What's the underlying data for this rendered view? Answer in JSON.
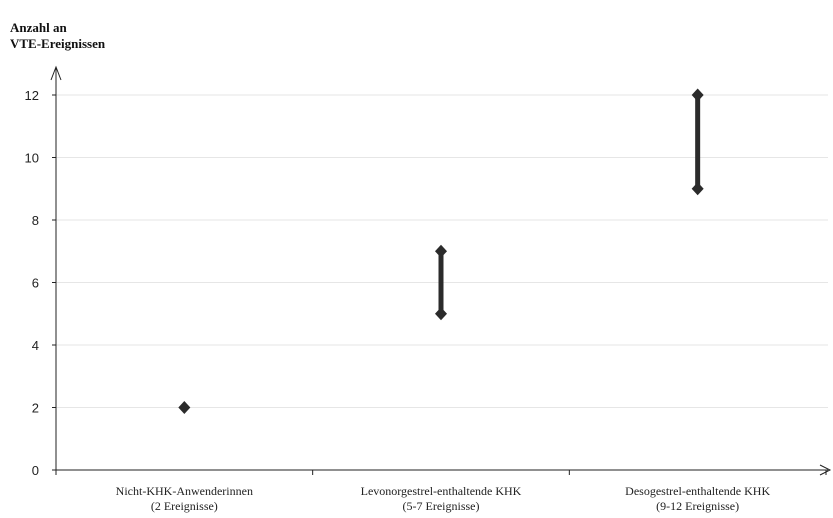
{
  "chart_data": {
    "type": "range",
    "ylabel_lines": [
      "Anzahl an",
      "VTE-Ereignissen"
    ],
    "ylim": [
      0,
      12
    ],
    "yticks": [
      "0",
      "2",
      "4",
      "6",
      "8",
      "10",
      "12"
    ],
    "grid": true,
    "categories": [
      {
        "name": "Nicht-KHK-Anwenderinnen",
        "note": "(2 Ereignisse)",
        "low": 2,
        "high": 2
      },
      {
        "name": "Levonorgestrel-enthaltende KHK",
        "note": "(5-7 Ereignisse)",
        "low": 5,
        "high": 7
      },
      {
        "name": "Desogestrel-enthaltende KHK",
        "note": "(9-12 Ereignisse)",
        "low": 9,
        "high": 12
      }
    ],
    "color": "#2b2b2b"
  }
}
